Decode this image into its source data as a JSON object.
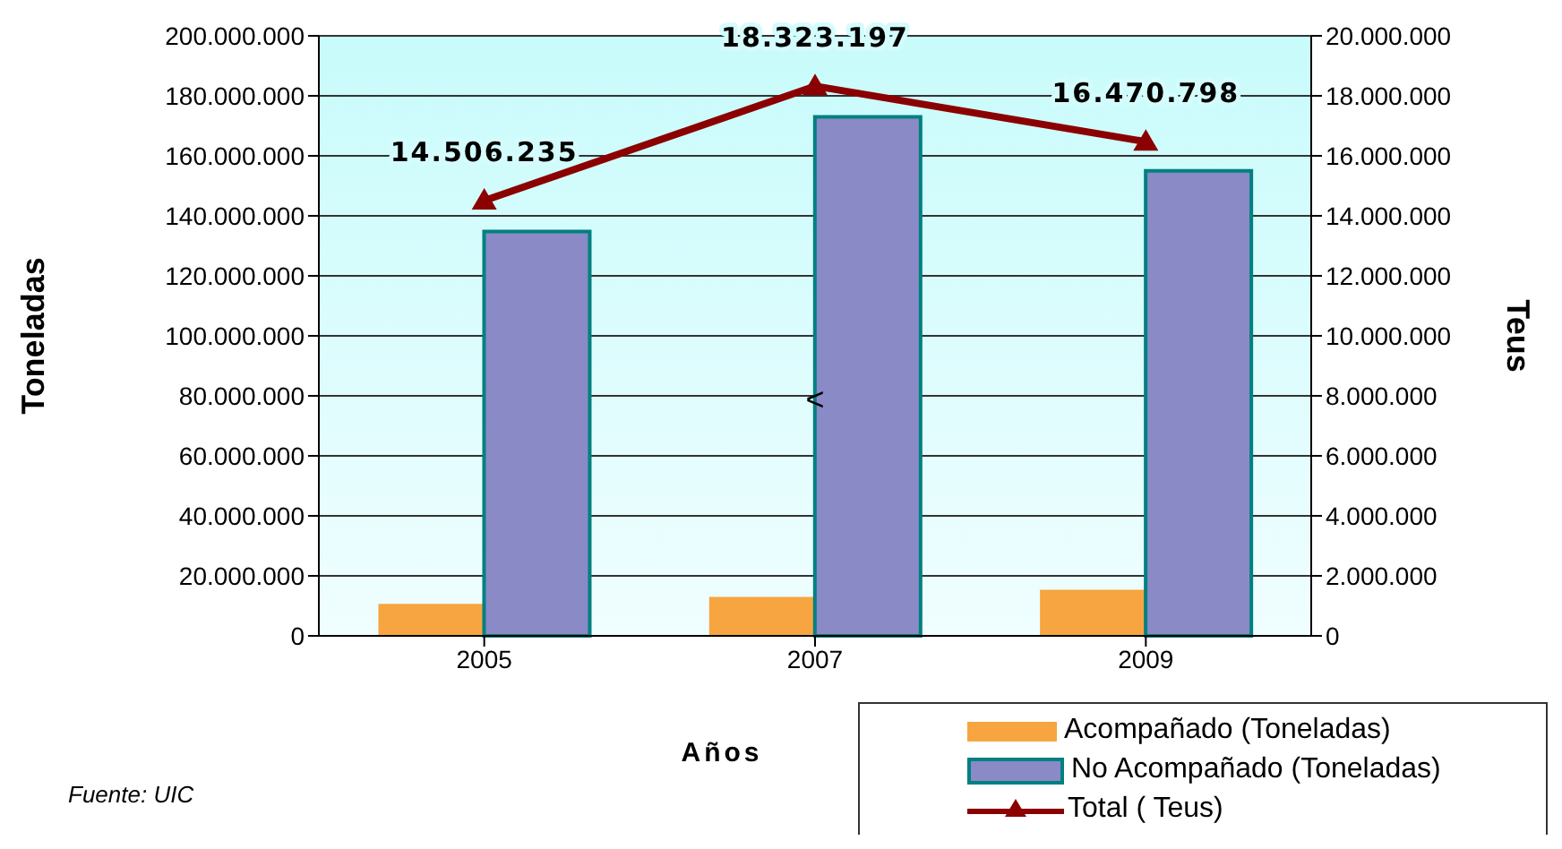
{
  "chart_data": {
    "type": "bar",
    "categories": [
      "2005",
      "2007",
      "2009"
    ],
    "xlabel": "Años",
    "ylabel": "Toneladas",
    "y2label": "Teus",
    "series": [
      {
        "name": "Acompañado (Toneladas)",
        "color": "#f7a540",
        "values": [
          10700000,
          13000000,
          15400000
        ]
      },
      {
        "name": "No Acompañado (Toneladas)",
        "color": "#8a8ac6",
        "values": [
          134800000,
          173000000,
          155000000
        ]
      },
      {
        "name": "Total ( Teus)",
        "type": "line",
        "axis": "y2",
        "color": "#8b0000",
        "marker": "triangle",
        "values": [
          14506235,
          18323197,
          16470798
        ],
        "value_labels": [
          "14.506.235",
          "18.323.197",
          "16.470.798"
        ]
      }
    ],
    "ylim": [
      0,
      200000000
    ],
    "yticks": [
      0,
      {
        "value": 20000000,
        "label": "20.000.000"
      },
      {
        "value": 40000000,
        "label": "40.000.000"
      },
      {
        "value": 60000000,
        "label": "60.000.000"
      },
      {
        "value": 80000000,
        "label": "80.000.000"
      },
      {
        "value": 100000000,
        "label": "100.000.000"
      },
      {
        "value": 120000000,
        "label": "120.000.000"
      },
      {
        "value": 140000000,
        "label": "140.000.000"
      },
      {
        "value": 160000000,
        "label": "160.000.000"
      },
      {
        "value": 180000000,
        "label": "180.000.000"
      },
      {
        "value": 200000000,
        "label": "200.000.000"
      }
    ],
    "y2lim": [
      0,
      20000000
    ],
    "y2ticks": [
      0,
      {
        "value": 2000000,
        "label": "2.000.000"
      },
      {
        "value": 4000000,
        "label": "4.000.000"
      },
      {
        "value": 6000000,
        "label": "6.000.000"
      },
      {
        "value": 8000000,
        "label": "8.000.000"
      },
      {
        "value": 10000000,
        "label": "10.000.000"
      },
      {
        "value": 12000000,
        "label": "12.000.000"
      },
      {
        "value": 14000000,
        "label": "14.000.000"
      },
      {
        "value": 16000000,
        "label": "16.000.000"
      },
      {
        "value": 18000000,
        "label": "18.000.000"
      },
      {
        "value": 20000000,
        "label": "20.000.000"
      }
    ],
    "grid": "y",
    "legend": "bottom right",
    "annotations": [
      {
        "text": "<",
        "x": "2007",
        "y": 79000000
      },
      "Fuente: UIC"
    ]
  }
}
